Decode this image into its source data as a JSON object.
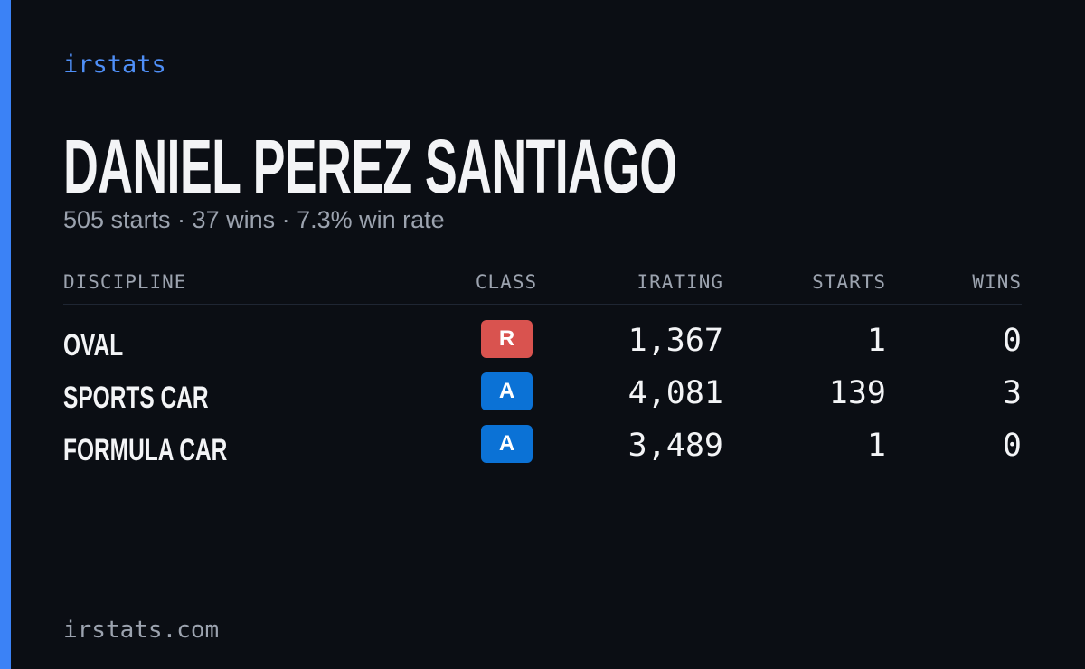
{
  "header": {
    "brand": "irstats",
    "name": "DANIEL PEREZ SANTIAGO",
    "summary": "505 starts · 37 wins · 7.3% win rate"
  },
  "table": {
    "columns": [
      "DISCIPLINE",
      "CLASS",
      "IRATING",
      "STARTS",
      "WINS"
    ],
    "rows": [
      {
        "discipline": "OVAL",
        "class": "R",
        "class_color": "#d9534f",
        "irating": "1,367",
        "starts": "1",
        "wins": "0"
      },
      {
        "discipline": "SPORTS CAR",
        "class": "A",
        "class_color": "#0b72d6",
        "irating": "4,081",
        "starts": "139",
        "wins": "3"
      },
      {
        "discipline": "FORMULA CAR",
        "class": "A",
        "class_color": "#0b72d6",
        "irating": "3,489",
        "starts": "1",
        "wins": "0"
      }
    ]
  },
  "footer": {
    "site": "irstats.com"
  }
}
